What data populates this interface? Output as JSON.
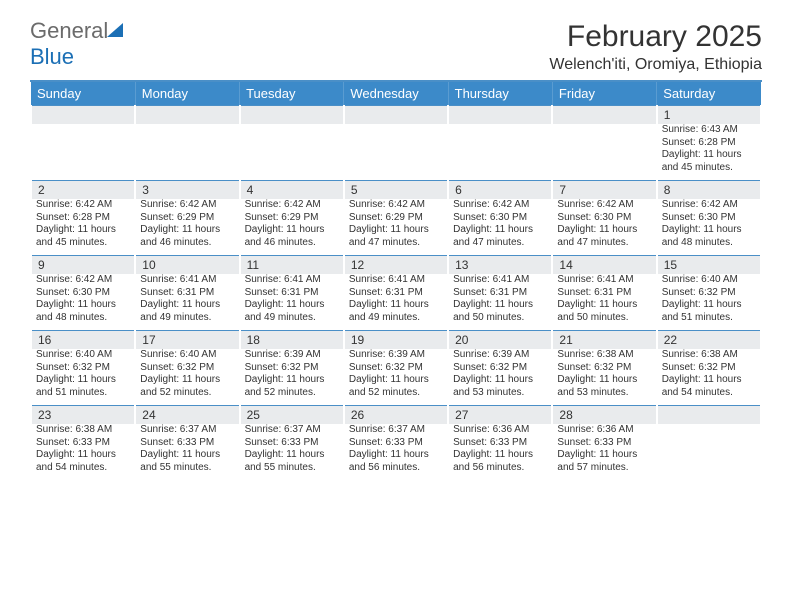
{
  "logo": {
    "word1": "General",
    "word2": "Blue"
  },
  "colors": {
    "header_bg": "#3c8ac9",
    "accent_line": "#4a8fc7",
    "daynum_bg": "#e9ebed",
    "empty_bg": "#eef0f2",
    "text": "#333333",
    "logo_gray": "#6b6b6b",
    "logo_blue": "#1b6fb5",
    "sail_blue": "#1b6fb5"
  },
  "header": {
    "month_title": "February 2025",
    "location": "Welench'iti, Oromiya, Ethiopia"
  },
  "day_names": [
    "Sunday",
    "Monday",
    "Tuesday",
    "Wednesday",
    "Thursday",
    "Friday",
    "Saturday"
  ],
  "weeks": [
    [
      null,
      null,
      null,
      null,
      null,
      null,
      {
        "n": "1",
        "sr": "6:43 AM",
        "ss": "6:28 PM",
        "dl": "11 hours and 45 minutes."
      }
    ],
    [
      {
        "n": "2",
        "sr": "6:42 AM",
        "ss": "6:28 PM",
        "dl": "11 hours and 45 minutes."
      },
      {
        "n": "3",
        "sr": "6:42 AM",
        "ss": "6:29 PM",
        "dl": "11 hours and 46 minutes."
      },
      {
        "n": "4",
        "sr": "6:42 AM",
        "ss": "6:29 PM",
        "dl": "11 hours and 46 minutes."
      },
      {
        "n": "5",
        "sr": "6:42 AM",
        "ss": "6:29 PM",
        "dl": "11 hours and 47 minutes."
      },
      {
        "n": "6",
        "sr": "6:42 AM",
        "ss": "6:30 PM",
        "dl": "11 hours and 47 minutes."
      },
      {
        "n": "7",
        "sr": "6:42 AM",
        "ss": "6:30 PM",
        "dl": "11 hours and 47 minutes."
      },
      {
        "n": "8",
        "sr": "6:42 AM",
        "ss": "6:30 PM",
        "dl": "11 hours and 48 minutes."
      }
    ],
    [
      {
        "n": "9",
        "sr": "6:42 AM",
        "ss": "6:30 PM",
        "dl": "11 hours and 48 minutes."
      },
      {
        "n": "10",
        "sr": "6:41 AM",
        "ss": "6:31 PM",
        "dl": "11 hours and 49 minutes."
      },
      {
        "n": "11",
        "sr": "6:41 AM",
        "ss": "6:31 PM",
        "dl": "11 hours and 49 minutes."
      },
      {
        "n": "12",
        "sr": "6:41 AM",
        "ss": "6:31 PM",
        "dl": "11 hours and 49 minutes."
      },
      {
        "n": "13",
        "sr": "6:41 AM",
        "ss": "6:31 PM",
        "dl": "11 hours and 50 minutes."
      },
      {
        "n": "14",
        "sr": "6:41 AM",
        "ss": "6:31 PM",
        "dl": "11 hours and 50 minutes."
      },
      {
        "n": "15",
        "sr": "6:40 AM",
        "ss": "6:32 PM",
        "dl": "11 hours and 51 minutes."
      }
    ],
    [
      {
        "n": "16",
        "sr": "6:40 AM",
        "ss": "6:32 PM",
        "dl": "11 hours and 51 minutes."
      },
      {
        "n": "17",
        "sr": "6:40 AM",
        "ss": "6:32 PM",
        "dl": "11 hours and 52 minutes."
      },
      {
        "n": "18",
        "sr": "6:39 AM",
        "ss": "6:32 PM",
        "dl": "11 hours and 52 minutes."
      },
      {
        "n": "19",
        "sr": "6:39 AM",
        "ss": "6:32 PM",
        "dl": "11 hours and 52 minutes."
      },
      {
        "n": "20",
        "sr": "6:39 AM",
        "ss": "6:32 PM",
        "dl": "11 hours and 53 minutes."
      },
      {
        "n": "21",
        "sr": "6:38 AM",
        "ss": "6:32 PM",
        "dl": "11 hours and 53 minutes."
      },
      {
        "n": "22",
        "sr": "6:38 AM",
        "ss": "6:32 PM",
        "dl": "11 hours and 54 minutes."
      }
    ],
    [
      {
        "n": "23",
        "sr": "6:38 AM",
        "ss": "6:33 PM",
        "dl": "11 hours and 54 minutes."
      },
      {
        "n": "24",
        "sr": "6:37 AM",
        "ss": "6:33 PM",
        "dl": "11 hours and 55 minutes."
      },
      {
        "n": "25",
        "sr": "6:37 AM",
        "ss": "6:33 PM",
        "dl": "11 hours and 55 minutes."
      },
      {
        "n": "26",
        "sr": "6:37 AM",
        "ss": "6:33 PM",
        "dl": "11 hours and 56 minutes."
      },
      {
        "n": "27",
        "sr": "6:36 AM",
        "ss": "6:33 PM",
        "dl": "11 hours and 56 minutes."
      },
      {
        "n": "28",
        "sr": "6:36 AM",
        "ss": "6:33 PM",
        "dl": "11 hours and 57 minutes."
      },
      null
    ]
  ],
  "labels": {
    "sunrise": "Sunrise:",
    "sunset": "Sunset:",
    "daylight": "Daylight:"
  }
}
